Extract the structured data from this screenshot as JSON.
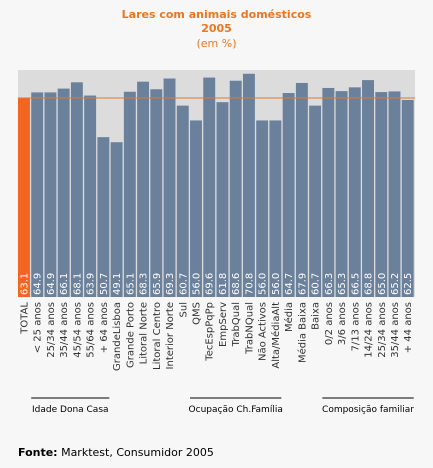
{
  "chart_data": {
    "type": "bar",
    "title": "Lares com animais domésticos",
    "subtitle": "2005",
    "unit_note": "(em %)",
    "categories": [
      "TOTAL",
      "< 25 anos",
      "25/34 anos",
      "35/44 anos",
      "45/54 anos",
      "55/64 anos",
      "+ 64 anos",
      "GrandeLisboa",
      "Grande Porto",
      "Litoral Norte",
      "Litoral Centro",
      "Interior Norte",
      "Sul",
      "QMS",
      "TecEspPqPp",
      "EmpServ",
      "TrabQual",
      "TrabNQual",
      "Não Activos",
      "Alta/MédiaAlt",
      "Média",
      "Média Baixa",
      "Baixa",
      "0/2 anos",
      "3/6 anos",
      "7/13 anos",
      "14/24 anos",
      "25/34 anos",
      "35/44 anos",
      "+ 44 anos"
    ],
    "values": [
      63.1,
      64.9,
      64.9,
      66.1,
      68.1,
      63.9,
      50.7,
      49.1,
      65.1,
      68.3,
      65.9,
      69.3,
      60.7,
      56.0,
      69.6,
      61.8,
      68.6,
      70.8,
      56.0,
      56.0,
      64.7,
      67.9,
      60.7,
      66.3,
      65.3,
      66.5,
      68.8,
      65.0,
      65.2,
      62.5
    ],
    "value_labels": [
      "63.1",
      "64.9",
      "64.9",
      "66.1",
      "68.1",
      "63.9",
      "50.7",
      "49.1",
      "65.1",
      "68.3",
      "65.9",
      "69.3",
      "60.7",
      "56.0",
      "69.6",
      "61.8",
      "68.6",
      "70.8",
      "56.0",
      "56.0",
      "64.7",
      "67.9",
      "60.7",
      "66.3",
      "65.3",
      "66.5",
      "68.8",
      "65.0",
      "65.2",
      "62.5"
    ],
    "reference_line": 63.1,
    "groups": [
      {
        "label": "Idade Dona Casa",
        "start": 1,
        "end": 6
      },
      {
        "label": "Ocupação Ch.Família",
        "start": 13,
        "end": 19
      },
      {
        "label": "Composição familiar",
        "start": 23,
        "end": 29
      }
    ],
    "ylim": [
      0,
      72
    ],
    "colors": {
      "total": "#f26522",
      "bar": "#6b819b",
      "reference": "#e87722",
      "title": "#e87722"
    }
  },
  "source": {
    "label": "Fonte:",
    "text": " Marktest, Consumidor 2005"
  }
}
